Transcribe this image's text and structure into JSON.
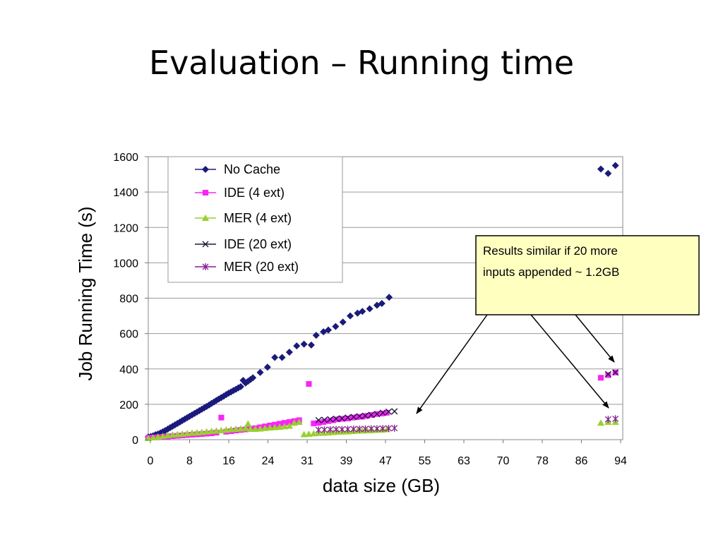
{
  "slide": {
    "title": "Evaluation – Running time"
  },
  "colors": {
    "no_cache": "#1a1a7e",
    "ide_4": "#ff20ff",
    "mer_4": "#96d22a",
    "ide_20": "#1a1a3a",
    "mer_20": "#8a1a9a",
    "callout_fill": "#ffffc0"
  },
  "callout": {
    "lines": [
      "Results similar if 20 more",
      "inputs appended ~ 1.2GB"
    ]
  },
  "chart_data": {
    "type": "scatter",
    "xlabel": "data size (GB)",
    "ylabel": "Job Running Time (s)",
    "ylim": [
      0,
      1600
    ],
    "yticks": [
      0,
      200,
      400,
      600,
      800,
      1000,
      1200,
      1400,
      1600
    ],
    "x_tick_labels": [
      "0",
      "8",
      "16",
      "24",
      "31",
      "39",
      "47",
      "55",
      "63",
      "70",
      "78",
      "86",
      "94"
    ],
    "grid": "horizontal",
    "legend_position": "top-left inside",
    "series": [
      {
        "name": "No Cache",
        "marker": "diamond",
        "color_key": "no_cache",
        "points": [
          [
            0,
            15
          ],
          [
            0.5,
            18
          ],
          [
            1,
            22
          ],
          [
            1.5,
            28
          ],
          [
            2,
            32
          ],
          [
            2.5,
            38
          ],
          [
            3,
            45
          ],
          [
            3.5,
            52
          ],
          [
            4,
            60
          ],
          [
            4.5,
            68
          ],
          [
            5,
            76
          ],
          [
            5.5,
            84
          ],
          [
            6,
            92
          ],
          [
            6.5,
            100
          ],
          [
            7,
            108
          ],
          [
            7.5,
            116
          ],
          [
            8,
            124
          ],
          [
            8.5,
            132
          ],
          [
            9,
            140
          ],
          [
            9.5,
            148
          ],
          [
            10,
            156
          ],
          [
            10.5,
            164
          ],
          [
            11,
            172
          ],
          [
            11.5,
            180
          ],
          [
            12,
            188
          ],
          [
            12.5,
            196
          ],
          [
            13,
            205
          ],
          [
            13.5,
            213
          ],
          [
            14,
            222
          ],
          [
            14.5,
            230
          ],
          [
            15,
            238
          ],
          [
            15.5,
            246
          ],
          [
            16,
            255
          ],
          [
            16.5,
            263
          ],
          [
            17,
            270
          ],
          [
            17.5,
            278
          ],
          [
            18,
            285
          ],
          [
            18.5,
            293
          ],
          [
            19,
            300
          ],
          [
            19.5,
            335
          ],
          [
            20,
            320
          ],
          [
            20.5,
            330
          ],
          [
            21,
            340
          ],
          [
            21.5,
            350
          ],
          [
            23,
            380
          ],
          [
            24.5,
            410
          ],
          [
            26,
            465
          ],
          [
            27.5,
            465
          ],
          [
            29,
            495
          ],
          [
            30.5,
            530
          ],
          [
            32,
            540
          ],
          [
            33.5,
            535
          ],
          [
            34.5,
            590
          ],
          [
            36,
            610
          ],
          [
            37,
            620
          ],
          [
            38.5,
            640
          ],
          [
            40,
            665
          ],
          [
            41.5,
            700
          ],
          [
            43,
            715
          ],
          [
            44,
            725
          ],
          [
            45.5,
            740
          ],
          [
            47,
            760
          ],
          [
            48,
            770
          ],
          [
            49.5,
            805
          ],
          [
            93,
            1530
          ],
          [
            94.5,
            1505
          ],
          [
            96,
            1550
          ]
        ]
      },
      {
        "name": "IDE (4 ext)",
        "marker": "square",
        "color_key": "ide_4",
        "points": [
          [
            0,
            10
          ],
          [
            1,
            12
          ],
          [
            2,
            14
          ],
          [
            3,
            16
          ],
          [
            4,
            18
          ],
          [
            5,
            20
          ],
          [
            6,
            22
          ],
          [
            7,
            24
          ],
          [
            8,
            26
          ],
          [
            9,
            28
          ],
          [
            10,
            30
          ],
          [
            11,
            32
          ],
          [
            12,
            34
          ],
          [
            13,
            36
          ],
          [
            14,
            40
          ],
          [
            15,
            125
          ],
          [
            16,
            45
          ],
          [
            17,
            48
          ],
          [
            18,
            52
          ],
          [
            19,
            55
          ],
          [
            20,
            58
          ],
          [
            21,
            62
          ],
          [
            22,
            65
          ],
          [
            23,
            70
          ],
          [
            24,
            75
          ],
          [
            25,
            80
          ],
          [
            26,
            85
          ],
          [
            27,
            90
          ],
          [
            28,
            95
          ],
          [
            29,
            100
          ],
          [
            30,
            105
          ],
          [
            31,
            110
          ],
          [
            33,
            315
          ],
          [
            34,
            92
          ],
          [
            35,
            95
          ],
          [
            36,
            100
          ],
          [
            37,
            105
          ],
          [
            38,
            110
          ],
          [
            39,
            115
          ],
          [
            40,
            118
          ],
          [
            41,
            120
          ],
          [
            42,
            125
          ],
          [
            43,
            128
          ],
          [
            44,
            130
          ],
          [
            45,
            135
          ],
          [
            46,
            140
          ],
          [
            47,
            145
          ],
          [
            48,
            148
          ],
          [
            49,
            152
          ],
          [
            93,
            350
          ],
          [
            94.5,
            365
          ],
          [
            96,
            380
          ]
        ]
      },
      {
        "name": "MER (4 ext)",
        "marker": "triangle",
        "color_key": "mer_4",
        "points": [
          [
            0,
            8
          ],
          [
            1,
            12
          ],
          [
            2,
            16
          ],
          [
            3,
            20
          ],
          [
            4,
            24
          ],
          [
            5,
            28
          ],
          [
            6,
            30
          ],
          [
            7,
            32
          ],
          [
            8,
            35
          ],
          [
            9,
            38
          ],
          [
            10,
            40
          ],
          [
            11,
            42
          ],
          [
            12,
            45
          ],
          [
            13,
            48
          ],
          [
            14,
            50
          ],
          [
            15,
            52
          ],
          [
            16,
            55
          ],
          [
            17,
            58
          ],
          [
            18,
            60
          ],
          [
            19,
            62
          ],
          [
            20,
            65
          ],
          [
            20.5,
            90
          ],
          [
            21,
            60
          ],
          [
            22,
            60
          ],
          [
            23,
            62
          ],
          [
            24,
            65
          ],
          [
            25,
            68
          ],
          [
            26,
            70
          ],
          [
            27,
            72
          ],
          [
            28,
            75
          ],
          [
            29,
            78
          ],
          [
            30,
            95
          ],
          [
            31,
            100
          ],
          [
            32,
            30
          ],
          [
            33,
            32
          ],
          [
            34,
            35
          ],
          [
            35,
            37
          ],
          [
            36,
            38
          ],
          [
            37,
            40
          ],
          [
            38,
            42
          ],
          [
            39,
            44
          ],
          [
            40,
            45
          ],
          [
            41,
            46
          ],
          [
            42,
            48
          ],
          [
            43,
            50
          ],
          [
            44,
            51
          ],
          [
            45,
            52
          ],
          [
            46,
            53
          ],
          [
            47,
            55
          ],
          [
            48,
            56
          ],
          [
            49,
            58
          ],
          [
            93,
            95
          ],
          [
            94.5,
            100
          ],
          [
            96,
            100
          ]
        ]
      },
      {
        "name": "IDE (20 ext)",
        "marker": "x",
        "color_key": "ide_20",
        "points": [
          [
            35,
            110
          ],
          [
            36.2,
            112
          ],
          [
            37.4,
            115
          ],
          [
            38.6,
            118
          ],
          [
            39.8,
            120
          ],
          [
            41,
            125
          ],
          [
            42.2,
            128
          ],
          [
            43.4,
            132
          ],
          [
            44.6,
            135
          ],
          [
            45.8,
            140
          ],
          [
            47,
            145
          ],
          [
            48.2,
            152
          ],
          [
            49.4,
            158
          ],
          [
            50.6,
            160
          ],
          [
            94.5,
            370
          ],
          [
            96,
            380
          ]
        ]
      },
      {
        "name": "MER (20 ext)",
        "marker": "asterisk",
        "color_key": "mer_20",
        "points": [
          [
            35,
            55
          ],
          [
            36.2,
            56
          ],
          [
            37.4,
            57
          ],
          [
            38.6,
            58
          ],
          [
            39.8,
            58
          ],
          [
            41,
            59
          ],
          [
            42.2,
            60
          ],
          [
            43.4,
            60
          ],
          [
            44.6,
            61
          ],
          [
            45.8,
            62
          ],
          [
            47,
            62
          ],
          [
            48.2,
            63
          ],
          [
            49.4,
            64
          ],
          [
            50.6,
            65
          ],
          [
            94.5,
            115
          ],
          [
            96,
            118
          ]
        ]
      }
    ]
  }
}
